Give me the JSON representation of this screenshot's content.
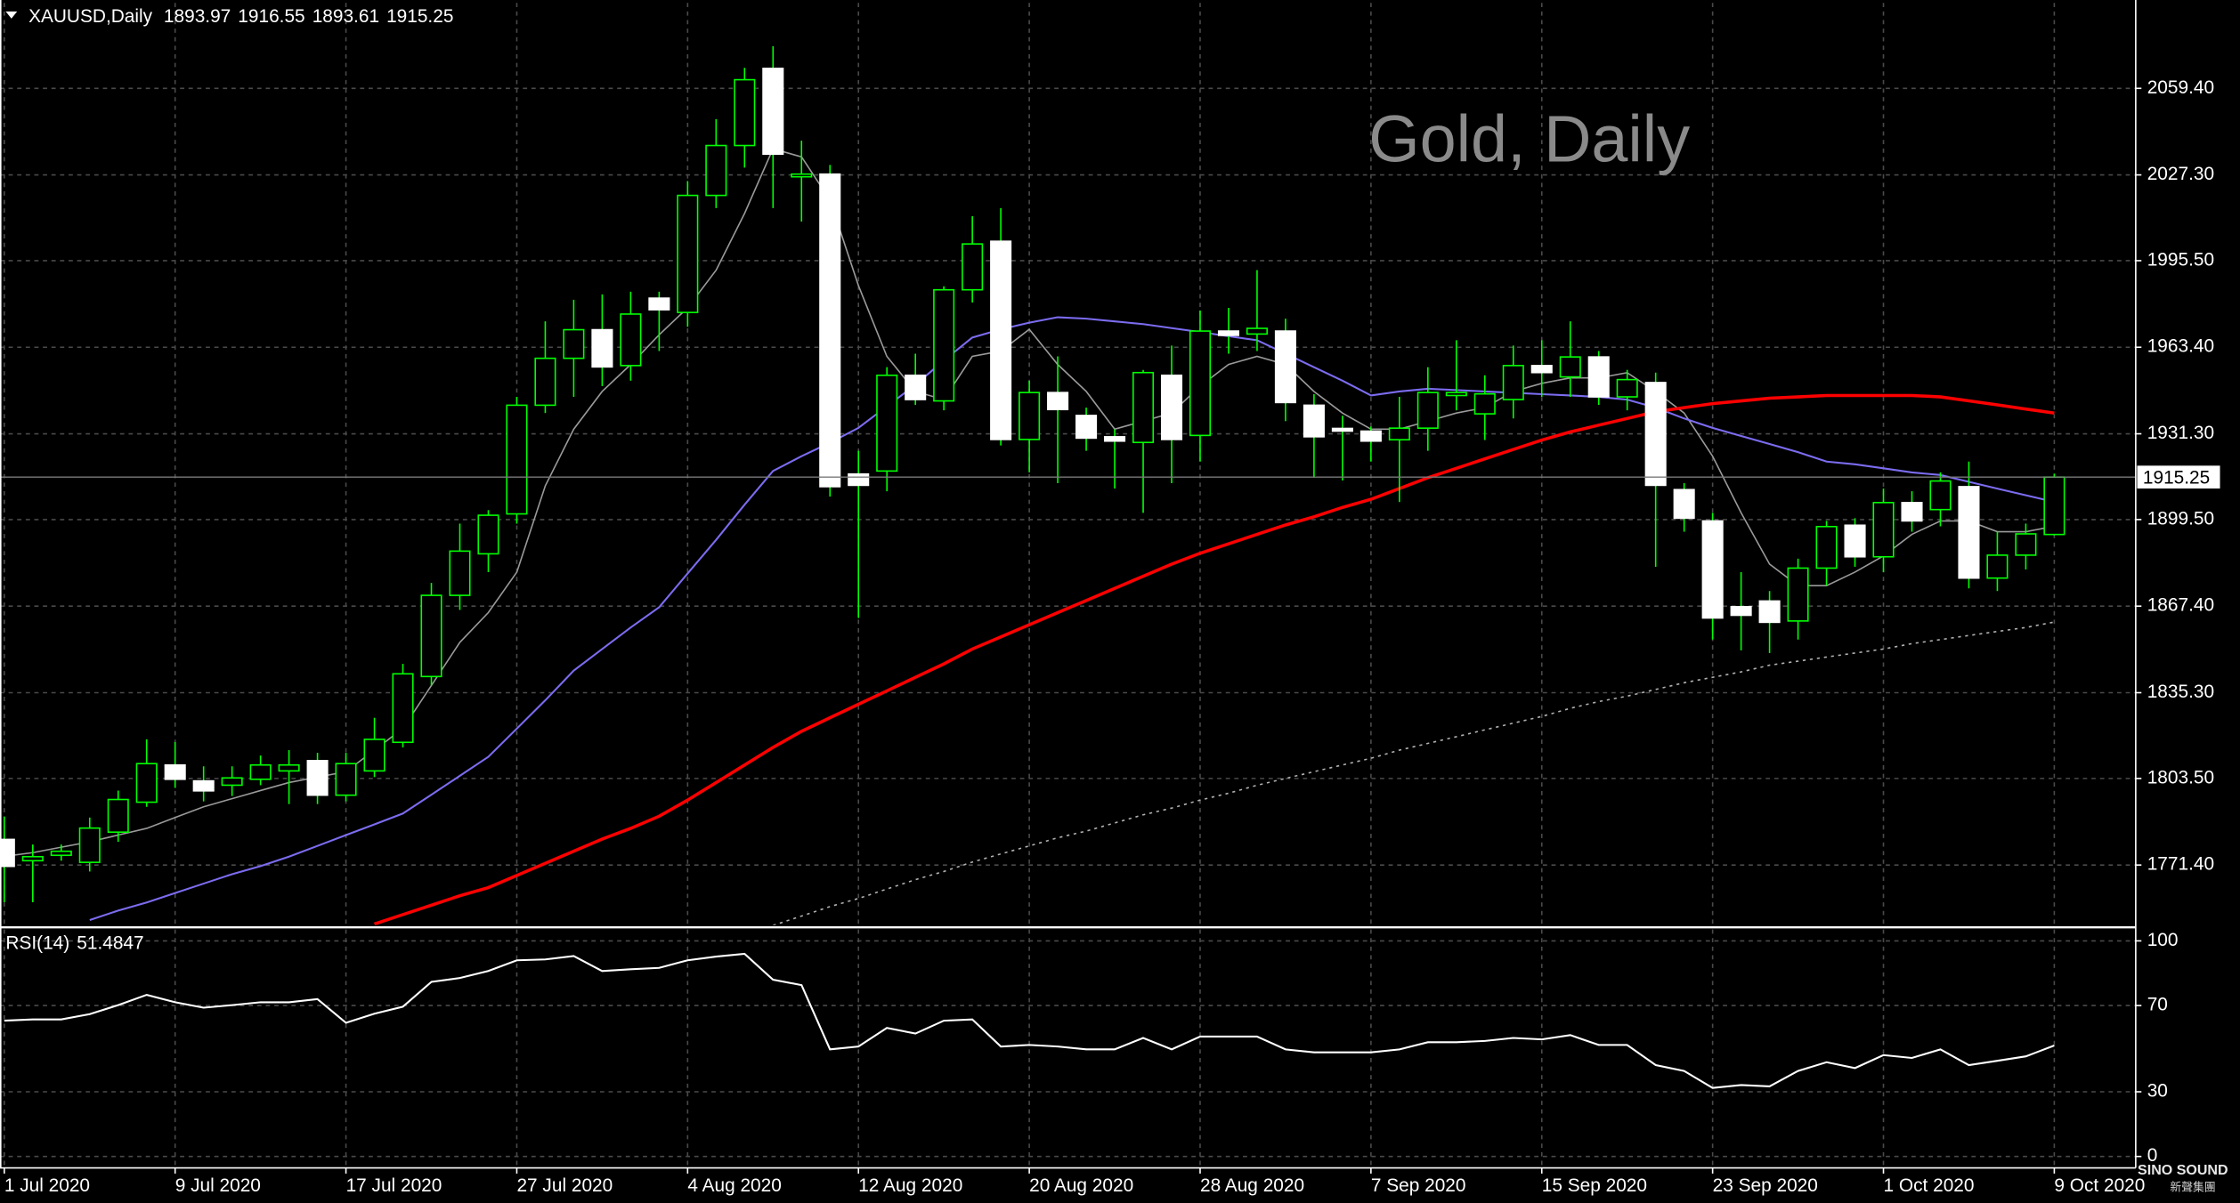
{
  "chart_data": [
    {
      "type": "candlestick",
      "title": "XAUUSD,Daily",
      "watermark": "Gold, Daily",
      "logo": "SINO SOUND",
      "logo_sub": "新聲集團",
      "categories": [
        "1 Jul 2020",
        null,
        null,
        null,
        null,
        null,
        "9 Jul 2020",
        null,
        null,
        null,
        null,
        null,
        "17 Jul 2020",
        null,
        null,
        null,
        null,
        null,
        "27 Jul 2020",
        null,
        null,
        null,
        null,
        null,
        "4 Aug 2020",
        null,
        null,
        null,
        null,
        null,
        "12 Aug 2020",
        null,
        null,
        null,
        null,
        null,
        "20 Aug 2020",
        null,
        null,
        null,
        null,
        null,
        "28 Aug 2020",
        null,
        null,
        null,
        null,
        null,
        "7 Sep 2020",
        null,
        null,
        null,
        null,
        null,
        "15 Sep 2020",
        null,
        null,
        null,
        null,
        null,
        "23 Sep 2020",
        null,
        null,
        null,
        null,
        null,
        "1 Oct 2020",
        null,
        null,
        null,
        null,
        null,
        "9 Oct 2020"
      ],
      "open": [
        1780.9,
        1773,
        1775,
        1772.4,
        1783.6,
        1794.7,
        1808.5,
        1802.6,
        1801,
        1803.2,
        1806.3,
        1810.1,
        1797.3,
        1806.3,
        1816.9,
        1841.3,
        1871.4,
        1886.8,
        1901.6,
        1941.9,
        1959.3,
        1969.9,
        1956.6,
        1981.6,
        1976.3,
        2019.7,
        2038.2,
        2066.8,
        2026.6,
        2027.6,
        1916.4,
        1917.5,
        1953,
        1943.5,
        1984.7,
        2002.7,
        1929.2,
        1946.6,
        1938.1,
        1930.2,
        1928.1,
        1953,
        1930.7,
        1969.4,
        1968.3,
        1969.4,
        1941.9,
        1933.3,
        1932.3,
        1929.1,
        1933.4,
        1945.5,
        1938.7,
        1944,
        1956.6,
        1952.4,
        1959.8,
        1945,
        1950.3,
        1910.6,
        1899,
        1867.2,
        1869.3,
        1861.9,
        1881.5,
        1897.4,
        1885.7,
        1905.8,
        1903.2,
        1911.7,
        1877.8,
        1886.3,
        1893.97
      ],
      "high": [
        1789.4,
        1779,
        1779,
        1789,
        1799,
        1818,
        1817,
        1808,
        1808,
        1812,
        1814,
        1813,
        1813,
        1826,
        1846,
        1876,
        1898,
        1903,
        1945,
        1973,
        1981,
        1983,
        1984,
        1984,
        2025,
        2048,
        2067,
        2075,
        2040,
        2031,
        1925,
        1956,
        1961,
        1986,
        2012,
        2015,
        1951,
        1960,
        1941,
        1933,
        1955,
        1964,
        1977,
        1978,
        1992,
        1974,
        1946,
        1938,
        1934,
        1945,
        1956,
        1966,
        1953,
        1964,
        1966,
        1973,
        1962,
        1955,
        1954,
        1913,
        1902,
        1880,
        1873,
        1885,
        1899,
        1900,
        1911,
        1910,
        1917,
        1921,
        1895,
        1898,
        1916.55
      ],
      "low": [
        1757.6,
        1757.6,
        1773,
        1769,
        1780,
        1793,
        1800,
        1795,
        1797,
        1801,
        1794,
        1794,
        1795,
        1804,
        1815,
        1838,
        1866,
        1880,
        1898,
        1939,
        1945,
        1949,
        1951,
        1962,
        1971,
        2015,
        2030,
        2015,
        2010,
        1908,
        1863,
        1910,
        1942,
        1940,
        1980,
        1927,
        1917,
        1913,
        1925,
        1911,
        1902,
        1913,
        1921,
        1961,
        1962,
        1936,
        1915,
        1914,
        1921,
        1906,
        1925,
        1940,
        1929,
        1937,
        1945,
        1945,
        1942,
        1940,
        1882,
        1895,
        1855,
        1851,
        1850,
        1855,
        1875,
        1882,
        1880,
        1895,
        1897,
        1874,
        1873,
        1881,
        1893.61
      ],
      "close": [
        1770.9,
        1774.5,
        1776.5,
        1785.1,
        1795.7,
        1809,
        1803.2,
        1798.9,
        1803.7,
        1808.5,
        1808.5,
        1797.3,
        1809,
        1818,
        1842.3,
        1871.4,
        1887.8,
        1901.1,
        1941.9,
        1959.3,
        1969.9,
        1956.1,
        1975.7,
        1977.3,
        2019.7,
        2038.2,
        2062.6,
        2035,
        2027.6,
        1911.7,
        1912.2,
        1953,
        1944,
        1984.7,
        2001.7,
        1929.2,
        1946.6,
        1940.3,
        1929.7,
        1928.6,
        1954,
        1929.2,
        1969.4,
        1967.8,
        1970.4,
        1942.9,
        1930.2,
        1932.3,
        1928.6,
        1933.4,
        1946.6,
        1946.6,
        1946.1,
        1956.6,
        1954,
        1959.8,
        1945,
        1951.4,
        1912.2,
        1900,
        1863,
        1864,
        1861.4,
        1881.5,
        1896.9,
        1885.7,
        1905.8,
        1899,
        1913.8,
        1877.8,
        1886.3,
        1894.2,
        1915.25
      ],
      "up_color": "#00ff00",
      "down_color": "#ffffff",
      "series": [
        {
          "color": "#9a9a9a",
          "style": "solid",
          "width": 1,
          "values": [
            1774.6,
            1776,
            1778,
            1780,
            1782.5,
            1785,
            1789,
            1793,
            1796,
            1799,
            1802,
            1804,
            1806,
            1814,
            1822,
            1838,
            1854,
            1865,
            1880,
            1912,
            1933,
            1947,
            1957,
            1968,
            1978,
            1992,
            2013,
            2037,
            2034,
            2018,
            1986.3,
            1960,
            1947,
            1944,
            1960,
            1962,
            1970,
            1957,
            1947,
            1933,
            1936,
            1939,
            1949,
            1957,
            1960,
            1957,
            1947,
            1939,
            1933,
            1933,
            1936,
            1939,
            1941,
            1947,
            1950,
            1952,
            1952,
            1954,
            1947,
            1939,
            1923,
            1902,
            1883,
            1875,
            1875,
            1880,
            1886,
            1894,
            1899,
            1899,
            1895,
            1895,
            1897
          ]
        },
        {
          "color": "#7b6cf0",
          "style": "solid",
          "width": 1.3,
          "values": [
            null,
            null,
            null,
            1751,
            1754.5,
            1757.5,
            1761,
            1764.5,
            1768,
            1771,
            1774.5,
            1778.5,
            1782.5,
            1786.5,
            1790.5,
            1797.5,
            1804.5,
            1811.5,
            1822,
            1832.5,
            1843.5,
            1851.5,
            1859.5,
            1867,
            1879.5,
            1892,
            1905,
            1917.5,
            1923,
            1928,
            1933.5,
            1941.5,
            1949.5,
            1958.5,
            1967,
            1970,
            1972.5,
            1974.5,
            1974,
            1973,
            1972,
            1970.5,
            1969,
            1967.5,
            1966,
            1961,
            1956,
            1951,
            1945.5,
            1947,
            1948,
            1947.5,
            1947,
            1946.5,
            1946,
            1945.5,
            1945,
            1944,
            1941,
            1937,
            1933.5,
            1930.5,
            1927.5,
            1924.5,
            1921,
            1920,
            1918.5,
            1917,
            1916,
            1913.5,
            1911,
            1908.5,
            1906
          ]
        },
        {
          "color": "#ff0000",
          "style": "solid",
          "width": 2.2,
          "values": [
            null,
            null,
            null,
            null,
            null,
            null,
            null,
            null,
            null,
            null,
            null,
            null,
            null,
            1749.5,
            1753,
            1756.5,
            1760,
            1763,
            1767.5,
            1772,
            1776.5,
            1781,
            1785,
            1789.5,
            1795.5,
            1802,
            1808.5,
            1815,
            1821,
            1826,
            1831,
            1836,
            1841,
            1846,
            1851.5,
            1856,
            1860.5,
            1865,
            1869.5,
            1874,
            1878.5,
            1883,
            1887,
            1890.5,
            1894,
            1897.5,
            1900.5,
            1904,
            1907,
            1911,
            1915,
            1918.5,
            1922,
            1925.5,
            1929,
            1932,
            1934.5,
            1937,
            1939.5,
            1941,
            1942.5,
            1943.5,
            1944.5,
            1945,
            1945.5,
            1945.5,
            1945.5,
            1945.5,
            1945,
            1943.5,
            1942,
            1940.5,
            1939
          ]
        },
        {
          "color": "#b0b0b0",
          "style": "dotted",
          "width": 1,
          "values": [
            null,
            null,
            null,
            null,
            null,
            null,
            null,
            null,
            null,
            null,
            null,
            null,
            null,
            null,
            null,
            null,
            null,
            null,
            null,
            null,
            null,
            null,
            null,
            null,
            null,
            null,
            null,
            1749,
            1752.5,
            1756,
            1759,
            1762.5,
            1766,
            1769,
            1772.5,
            1775.5,
            1778.5,
            1781.5,
            1784,
            1787,
            1790,
            1792.5,
            1795.5,
            1798,
            1801,
            1803.5,
            1806,
            1808.5,
            1811,
            1814,
            1816.5,
            1819,
            1821.5,
            1824,
            1826.5,
            1829.5,
            1832,
            1834,
            1836.5,
            1839,
            1841,
            1843,
            1845.5,
            1847,
            1848.5,
            1850,
            1851.5,
            1853.5,
            1855,
            1856.5,
            1858,
            1859.5,
            1861.5
          ]
        }
      ],
      "ylim": [
        1749.1,
        2091.1
      ],
      "yticks": [
        {
          "value": 2059.4,
          "label": "2059.40"
        },
        {
          "value": 2027.3,
          "label": "2027.30"
        },
        {
          "value": 1995.5,
          "label": "1995.50"
        },
        {
          "value": 1963.4,
          "label": "1963.40"
        },
        {
          "value": 1931.3,
          "label": "1931.30"
        },
        {
          "value": 1899.5,
          "label": "1899.50"
        },
        {
          "value": 1867.4,
          "label": "1867.40"
        },
        {
          "value": 1835.3,
          "label": "1835.30"
        },
        {
          "value": 1803.5,
          "label": "1803.50"
        },
        {
          "value": 1771.4,
          "label": "1771.40"
        }
      ],
      "grid": true
    },
    {
      "type": "line",
      "title": "RSI(14)",
      "color": "#ffffff",
      "values": [
        63,
        63.6,
        63.6,
        66,
        70.2,
        75,
        71.5,
        69,
        70.2,
        71.5,
        71.5,
        73,
        62,
        66.2,
        69.5,
        81,
        82.8,
        86,
        91,
        91.4,
        93,
        86,
        86.8,
        87.5,
        91,
        92.7,
        94,
        82,
        79.5,
        49.7,
        51,
        59.6,
        57,
        63,
        63.6,
        51,
        51.7,
        51,
        49.7,
        49.7,
        55,
        49.7,
        55.6,
        55.6,
        55.6,
        49.7,
        48.3,
        48.3,
        48.3,
        49.7,
        53,
        53,
        53.6,
        55,
        54.3,
        56.3,
        51.7,
        51.7,
        42.4,
        39.7,
        31.8,
        33.1,
        32.5,
        39.7,
        43.7,
        41,
        47,
        45.7,
        49.7,
        42.4,
        44.4,
        46.4,
        51.4847
      ],
      "ylim": [
        -5.3,
        105.3
      ],
      "yticks": [
        100,
        70,
        30,
        0
      ],
      "grid": true
    }
  ]
}
